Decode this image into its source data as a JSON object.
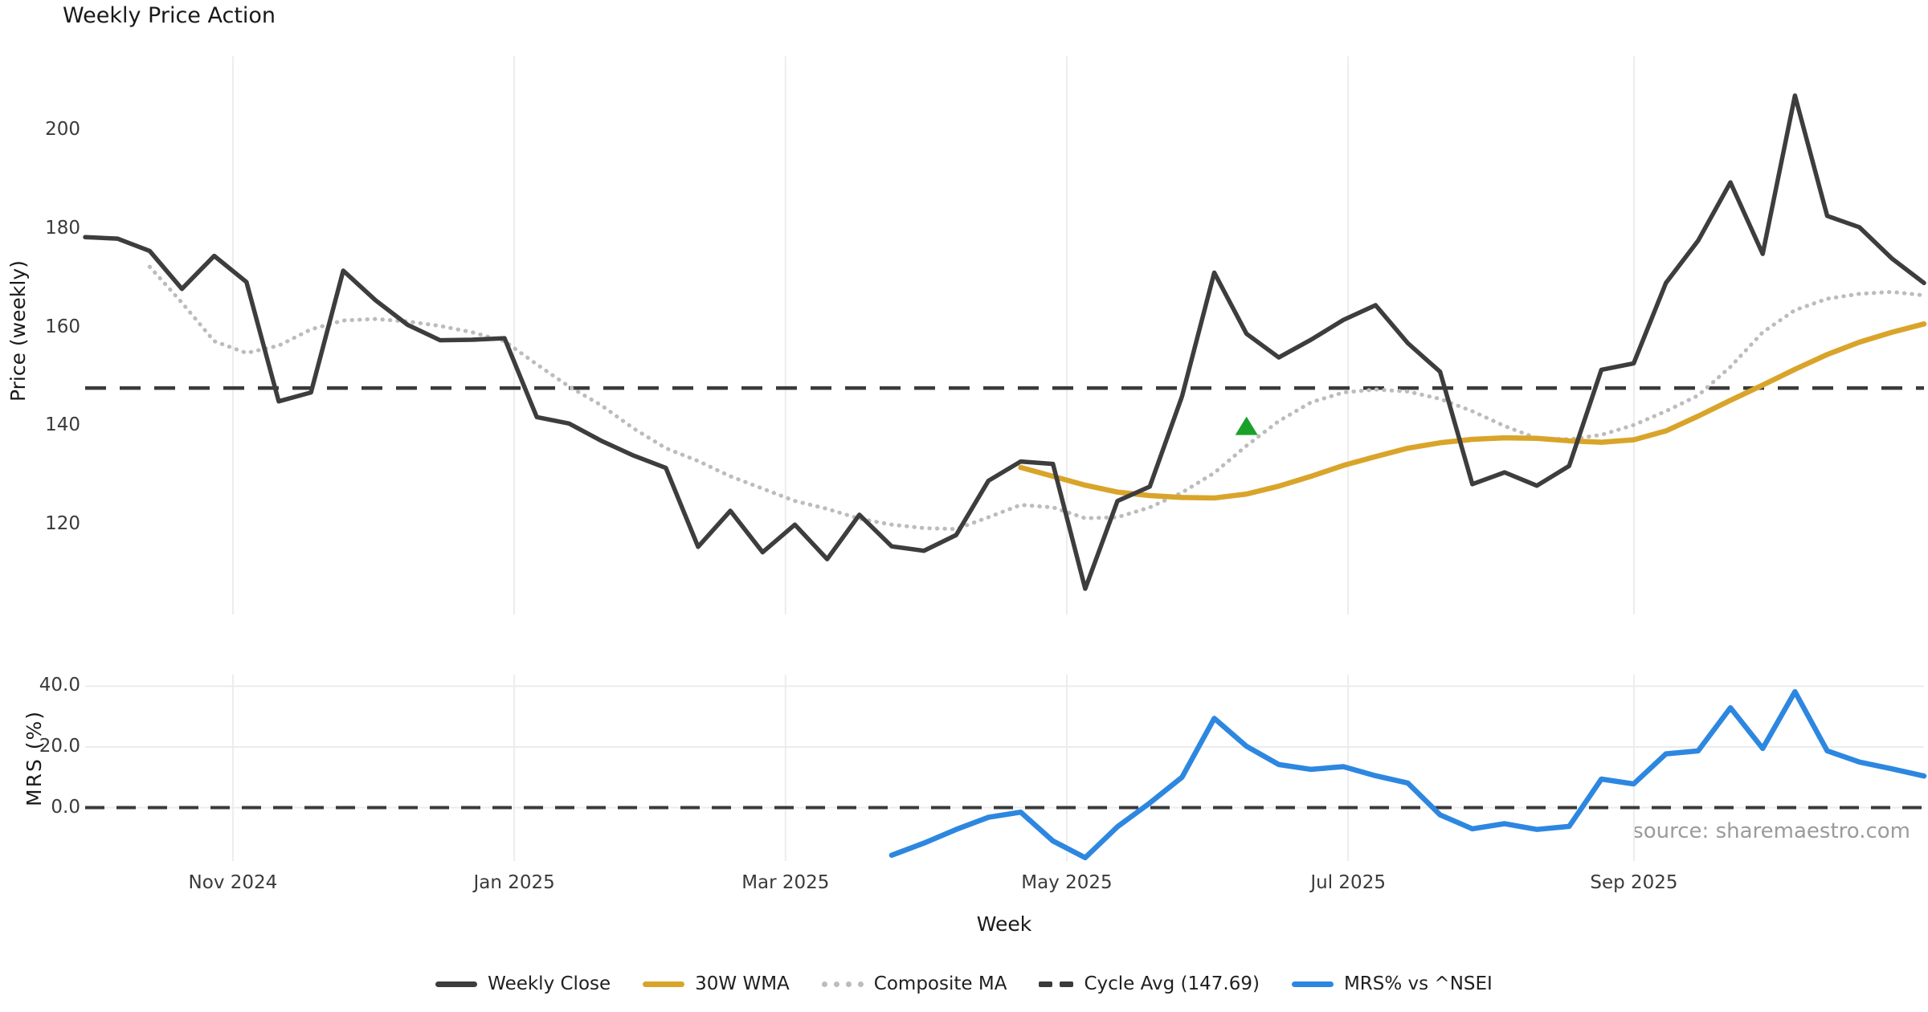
{
  "title": "Weekly Price Action",
  "source_note": "source: sharemaestro.com",
  "colors": {
    "close": "#3d3d3d",
    "wma": "#d9a42a",
    "composite": "#bcbcbc",
    "dash": "#3a3a3a",
    "mrs": "#2d87e0",
    "marker_green": "#1aa12b",
    "grid": "#ededed",
    "tick_text": "#3a3a3a"
  },
  "chart_data": [
    {
      "panel": "price",
      "type": "line",
      "ylabel": "Price (weekly)",
      "grid": "vertical-only",
      "ylim": [
        100,
        216
      ],
      "yticks": [
        {
          "label": "200",
          "value": 200
        },
        {
          "label": "180",
          "value": 180
        },
        {
          "label": "160",
          "value": 160
        },
        {
          "label": "140",
          "value": 140
        },
        {
          "label": "120",
          "value": 120
        }
      ],
      "series": [
        {
          "name": "Weekly Close",
          "style": "solid",
          "color_key": "close",
          "start_week": 0,
          "values": [
            178.3,
            178.0,
            175.5,
            167.8,
            174.5,
            169.2,
            145.0,
            146.8,
            171.5,
            165.5,
            160.5,
            157.4,
            157.5,
            157.8,
            141.8,
            140.5,
            137.0,
            134.0,
            131.5,
            115.5,
            122.8,
            114.4,
            120.0,
            113.0,
            122.0,
            115.6,
            114.7,
            117.9,
            128.9,
            132.8,
            132.3,
            107.0,
            124.8,
            127.7,
            146.0,
            171.1,
            158.7,
            153.9,
            157.5,
            161.5,
            164.5,
            156.8,
            151.0,
            128.2,
            130.6,
            127.9,
            131.9,
            151.4,
            152.7,
            169.0,
            177.6,
            189.4,
            174.9,
            207.0,
            182.6,
            180.3,
            174.0,
            169.0
          ]
        },
        {
          "name": "30W WMA",
          "style": "solid",
          "color_key": "wma",
          "start_week": 29,
          "values": [
            131.6,
            129.8,
            128.0,
            126.6,
            125.9,
            125.5,
            125.4,
            126.2,
            127.8,
            129.8,
            132.0,
            133.8,
            135.5,
            136.6,
            137.3,
            137.6,
            137.5,
            137.0,
            136.7,
            137.2,
            139.0,
            142.0,
            145.2,
            148.3,
            151.5,
            154.5,
            157.0,
            159.0,
            160.7
          ]
        },
        {
          "name": "Composite MA",
          "style": "dotted",
          "color_key": "composite",
          "start_week": 2,
          "values": [
            172.3,
            165.0,
            157.2,
            154.8,
            156.3,
            159.6,
            161.4,
            161.7,
            161.2,
            160.3,
            159.0,
            157.2,
            152.5,
            148.0,
            144.2,
            139.5,
            135.5,
            132.9,
            129.8,
            127.3,
            124.8,
            123.2,
            121.2,
            120.0,
            119.3,
            119.1,
            121.5,
            124.0,
            123.5,
            121.3,
            121.5,
            123.5,
            126.5,
            130.5,
            136.0,
            141.0,
            144.8,
            146.8,
            147.4,
            147.0,
            145.5,
            143.0,
            140.0,
            137.5,
            137.3,
            138.2,
            140.2,
            143.0,
            146.2,
            152.0,
            159.0,
            163.5,
            165.8,
            166.8,
            167.2,
            166.5
          ]
        },
        {
          "name": "Cycle Avg (147.69)",
          "style": "dashed",
          "color_key": "dash",
          "ref_value": 147.69
        }
      ],
      "marker": {
        "type": "triangle-up",
        "color_key": "marker_green",
        "week": 36,
        "value": 139.8
      }
    },
    {
      "panel": "mrs",
      "type": "line",
      "ylabel": "MRS (%)",
      "grid": "both",
      "ylim": [
        -18,
        44
      ],
      "yticks": [
        {
          "label": "40.0",
          "value": 40
        },
        {
          "label": "20.0",
          "value": 20
        },
        {
          "label": "0.0",
          "value": 0
        }
      ],
      "series": [
        {
          "name": "MRS% vs ^NSEI",
          "style": "solid",
          "color_key": "mrs",
          "start_week": 25,
          "values": [
            -15.7,
            -11.7,
            -7.2,
            -3.2,
            -1.5,
            -11.0,
            -16.5,
            -6.3,
            1.5,
            10.0,
            29.4,
            20.2,
            14.2,
            12.6,
            13.5,
            10.5,
            8.1,
            -2.4,
            -7.0,
            -5.3,
            -7.2,
            -6.2,
            9.4,
            7.8,
            17.7,
            18.7,
            32.9,
            19.5,
            38.2,
            18.7,
            15.0,
            12.8,
            10.4
          ]
        },
        {
          "name": "Zero line",
          "style": "dashed",
          "color_key": "dash",
          "ref_value": 0
        }
      ]
    }
  ],
  "x_axis": {
    "label": "Week",
    "weeks_total": 58,
    "ticks": [
      {
        "label": "Nov 2024",
        "week_pos": 4.58
      },
      {
        "label": "Jan 2025",
        "week_pos": 13.3
      },
      {
        "label": "Mar 2025",
        "week_pos": 21.71
      },
      {
        "label": "May 2025",
        "week_pos": 30.43
      },
      {
        "label": "Jul 2025",
        "week_pos": 39.15
      },
      {
        "label": "Sep 2025",
        "week_pos": 48.01
      }
    ]
  },
  "legend": {
    "items": [
      {
        "label": "Weekly Close",
        "swatch": "solid-close"
      },
      {
        "label": "30W WMA",
        "swatch": "solid-wma"
      },
      {
        "label": "Composite MA",
        "swatch": "dotted"
      },
      {
        "label": "Cycle Avg (147.69)",
        "swatch": "dashed"
      },
      {
        "label": "MRS% vs ^NSEI",
        "swatch": "solid-mrs"
      }
    ]
  }
}
